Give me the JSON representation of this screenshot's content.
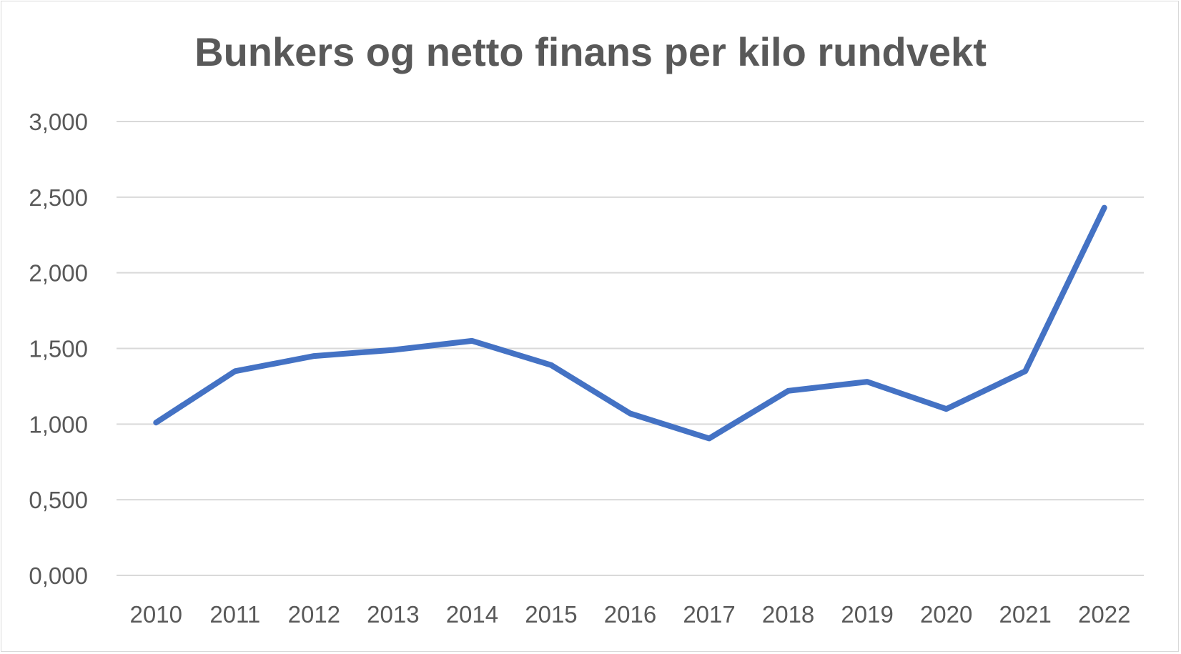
{
  "chart_data": {
    "type": "line",
    "title": "Bunkers og netto finans per kilo rundvekt",
    "xlabel": "",
    "ylabel": "",
    "categories": [
      "2010",
      "2011",
      "2012",
      "2013",
      "2014",
      "2015",
      "2016",
      "2017",
      "2018",
      "2019",
      "2020",
      "2021",
      "2022"
    ],
    "series": [
      {
        "values": [
          1.01,
          1.35,
          1.45,
          1.49,
          1.55,
          1.39,
          1.07,
          0.905,
          1.22,
          1.28,
          1.1,
          1.35,
          2.43
        ],
        "color": "#4472c4"
      }
    ],
    "ylim": [
      0,
      3
    ],
    "yticks": [
      0,
      0.5,
      1,
      1.5,
      2,
      2.5,
      3
    ],
    "ytick_labels": [
      "0,000",
      "0,500",
      "1,000",
      "1,500",
      "2,000",
      "2,500",
      "3,000"
    ],
    "grid": true,
    "legend": "none"
  }
}
